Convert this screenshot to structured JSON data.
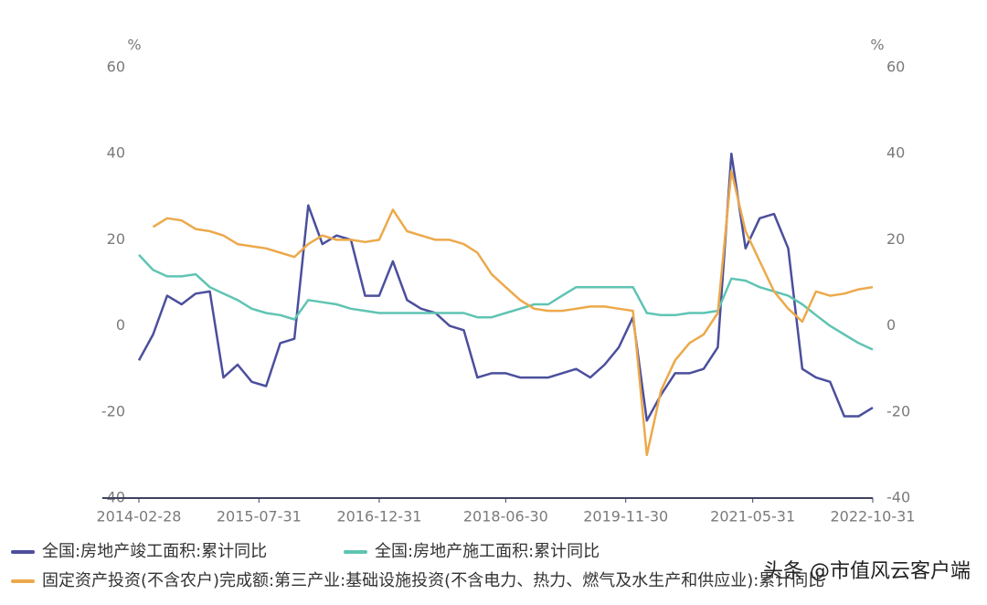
{
  "chart_data": {
    "type": "line",
    "y_unit": "%",
    "y2_unit": "%",
    "x": [
      "2014-02-28",
      "2014-04-30",
      "2014-06-30",
      "2014-08-31",
      "2014-10-31",
      "2014-12-31",
      "2015-02-28",
      "2015-04-30",
      "2015-06-30",
      "2015-08-31",
      "2015-10-31",
      "2015-12-31",
      "2016-02-29",
      "2016-04-30",
      "2016-06-30",
      "2016-08-31",
      "2016-10-31",
      "2016-12-31",
      "2017-02-28",
      "2017-04-30",
      "2017-06-30",
      "2017-08-31",
      "2017-10-31",
      "2017-12-31",
      "2018-02-28",
      "2018-04-30",
      "2018-06-30",
      "2018-08-31",
      "2018-10-31",
      "2018-12-31",
      "2019-02-28",
      "2019-04-30",
      "2019-06-30",
      "2019-08-31",
      "2019-10-31",
      "2019-12-31",
      "2020-02-29",
      "2020-04-30",
      "2020-06-30",
      "2020-08-31",
      "2020-10-31",
      "2020-12-31",
      "2021-02-28",
      "2021-04-30",
      "2021-06-30",
      "2021-08-31",
      "2021-10-31",
      "2021-12-31",
      "2022-02-28",
      "2022-04-30",
      "2022-06-30",
      "2022-08-31",
      "2022-10-31"
    ],
    "xlim": [
      "2014-02-28",
      "2022-10-31"
    ],
    "xticks": [
      "2014-02-28",
      "2015-07-31",
      "2016-12-31",
      "2018-06-30",
      "2019-11-30",
      "2021-05-31",
      "2022-10-31"
    ],
    "ylim": [
      -40,
      60
    ],
    "yticks": [
      -40,
      -20,
      0,
      20,
      40,
      60
    ],
    "y2lim": [
      -40,
      60
    ],
    "y2ticks": [
      -40,
      -20,
      0,
      20,
      40,
      60
    ],
    "grid": false,
    "series": [
      {
        "name": "全国:房地产竣工面积:累计同比",
        "color": "#4b4f9c",
        "values": [
          -8,
          -2,
          7,
          5,
          7.5,
          8,
          -12,
          -9,
          -13,
          -14,
          -4,
          -3,
          28,
          19,
          21,
          20,
          7,
          7,
          15,
          6,
          4,
          3,
          0,
          -1,
          -12,
          -11,
          -11,
          -12,
          -12,
          -12,
          -11,
          -10,
          -12,
          -9,
          -5,
          2,
          -22,
          -16,
          -11,
          -11,
          -10,
          -5,
          40,
          18,
          25,
          26,
          18,
          -10,
          -12,
          -13,
          -21,
          -21,
          -19
        ]
      },
      {
        "name": "全国:房地产施工面积:累计同比",
        "color": "#5fc4b3",
        "values": [
          16.5,
          13,
          11.5,
          11.5,
          12,
          9,
          7.5,
          6,
          4,
          3,
          2.5,
          1.5,
          6,
          5.5,
          5,
          4,
          3.5,
          3,
          3,
          3,
          3,
          3,
          3,
          3,
          2,
          2,
          3,
          4,
          5,
          5,
          7,
          9,
          9,
          9,
          9,
          9,
          3,
          2.5,
          2.5,
          3,
          3,
          3.5,
          11,
          10.5,
          9,
          8,
          7,
          5,
          2.5,
          0,
          -2,
          -4,
          -5.5
        ]
      },
      {
        "name": "固定资产投资(不含农户)完成额:第三产业:基础设施投资(不含电力、热力、燃气及水生产和供应业):累计同比",
        "color": "#eca94b",
        "values": [
          null,
          23,
          25,
          24.5,
          22.5,
          22,
          21,
          19,
          18.5,
          18,
          17,
          16,
          19,
          21,
          20,
          20,
          19.5,
          20,
          27,
          22,
          21,
          20,
          20,
          19,
          17,
          12,
          9,
          6,
          4,
          3.5,
          3.5,
          4,
          4.5,
          4.5,
          4,
          3.5,
          -30,
          -15,
          -8,
          -4,
          -2,
          3,
          36,
          22,
          15,
          8,
          4,
          1,
          8,
          7,
          7.5,
          8.5,
          9
        ]
      }
    ],
    "annotation": "头条 @市值风云客户端"
  }
}
